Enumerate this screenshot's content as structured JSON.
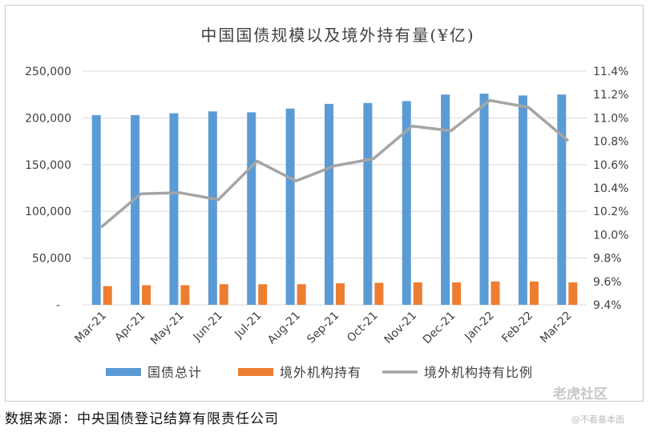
{
  "chart_data": {
    "type": "bar",
    "title": "中国国债规模以及境外持有量(¥亿)",
    "categories": [
      "Mar-21",
      "Apr-21",
      "May-21",
      "Jun-21",
      "Jul-21",
      "Aug-21",
      "Sep-21",
      "Oct-21",
      "Nov-21",
      "Dec-21",
      "Jan-22",
      "Feb-22",
      "Mar-22"
    ],
    "series": [
      {
        "name": "国债总计",
        "kind": "bar",
        "axis": "left",
        "color": "#5B9BD5",
        "values": [
          203000,
          203000,
          205000,
          207000,
          206000,
          210000,
          215000,
          216000,
          218000,
          225000,
          226000,
          224000,
          225000
        ]
      },
      {
        "name": "境外机构持有",
        "kind": "bar",
        "axis": "left",
        "color": "#ED7D31",
        "values": [
          20000,
          21000,
          21000,
          22000,
          22000,
          22000,
          23000,
          23500,
          24000,
          24000,
          25000,
          25000,
          24000
        ]
      },
      {
        "name": "境外机构持有比例",
        "kind": "line",
        "axis": "right",
        "color": "#A5A5A5",
        "values": [
          10.07,
          10.35,
          10.36,
          10.3,
          10.63,
          10.46,
          10.59,
          10.65,
          10.93,
          10.89,
          11.15,
          11.09,
          10.81
        ]
      }
    ],
    "y_left": {
      "min": 0,
      "max": 250000,
      "tick_labels": [
        "-",
        "50,000",
        "100,000",
        "150,000",
        "200,000",
        "250,000"
      ]
    },
    "y_right": {
      "min": 9.4,
      "max": 11.4,
      "tick_labels": [
        "9.4%",
        "9.6%",
        "9.8%",
        "10.0%",
        "10.2%",
        "10.4%",
        "10.6%",
        "10.8%",
        "11.0%",
        "11.2%",
        "11.4%"
      ]
    },
    "grid": true,
    "legend_position": "bottom"
  },
  "source_note": "数据来源：中央国债登记结算有限责任公司",
  "watermark": {
    "main": "老虎社区",
    "sub": "@不看基本面"
  }
}
